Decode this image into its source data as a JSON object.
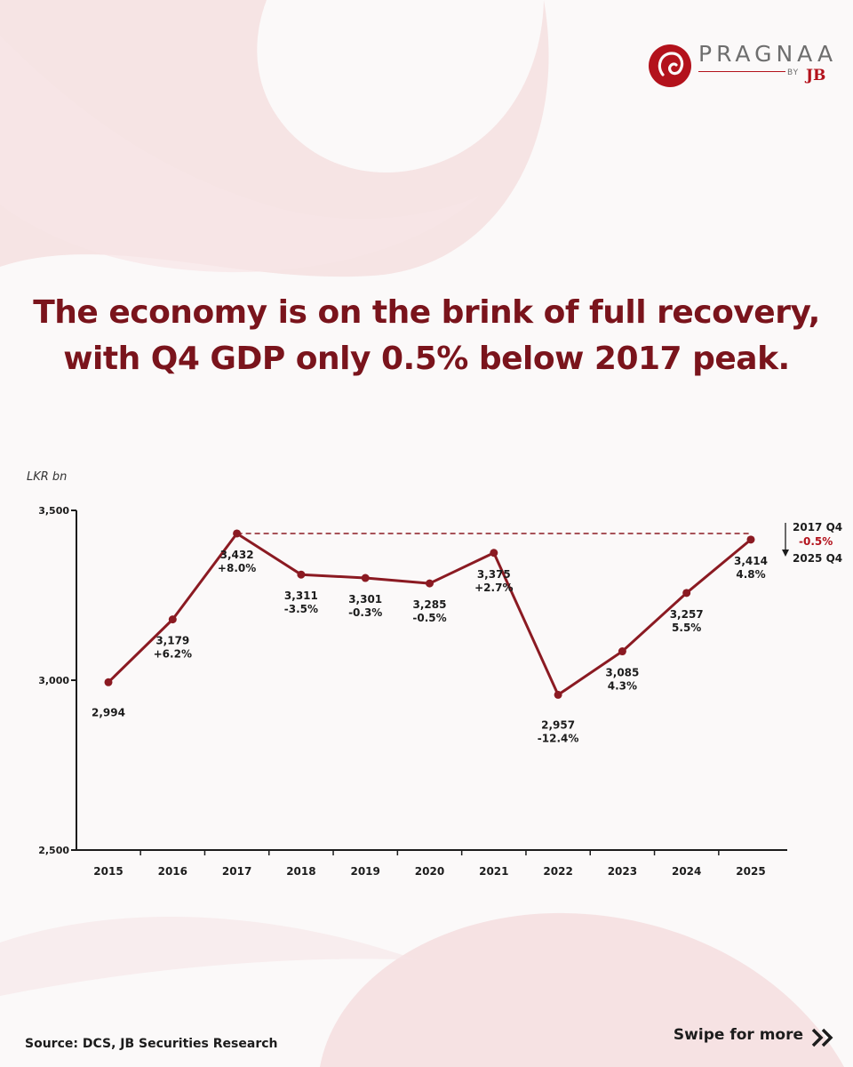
{
  "brand": {
    "name": "PRAGNAA",
    "by": "BY",
    "jb": "JB"
  },
  "headline": {
    "line1": "The economy is on the brink of full recovery,",
    "line2": "with Q4 GDP only 0.5% below 2017 peak."
  },
  "chart_data": {
    "type": "line",
    "title": "The economy is on the brink of full recovery, with Q4 GDP only 0.5% below 2017 peak.",
    "ylabel": "LKR bn",
    "xlabel": "",
    "ylim": [
      2500,
      3500
    ],
    "yticks": [
      {
        "value": 2500,
        "label": "2,500"
      },
      {
        "value": 3000,
        "label": "3,000"
      },
      {
        "value": 3500,
        "label": "3,500"
      }
    ],
    "grid": false,
    "legend": "none",
    "color": "#8b1a22",
    "x": [
      "2015",
      "2016",
      "2017",
      "2018",
      "2019",
      "2020",
      "2021",
      "2022",
      "2023",
      "2024",
      "2025"
    ],
    "values": [
      2994,
      3179,
      3432,
      3311,
      3301,
      3285,
      3375,
      2957,
      3085,
      3257,
      3414
    ],
    "value_labels": [
      "2,994",
      "3,179",
      "3,432",
      "3,311",
      "3,301",
      "3,285",
      "3,375",
      "2,957",
      "3,085",
      "3,257",
      "3,414"
    ],
    "growth_labels": [
      "",
      "+6.2%",
      "+8.0%",
      "-3.5%",
      "-0.3%",
      "-0.5%",
      "+2.7%",
      "-12.4%",
      "4.3%",
      "5.5%",
      "4.8%"
    ],
    "peak_reference": {
      "value": 3432,
      "from": "2017",
      "to": "2025",
      "style": "dashed"
    },
    "annotation": {
      "top": "2017 Q4",
      "change": "-0.5%",
      "bottom": "2025 Q4"
    }
  },
  "footer": {
    "source": "Source: DCS, JB Securities Research",
    "swipe": "Swipe for more"
  },
  "colors": {
    "accent": "#7a141c",
    "brand_red": "#b3121c",
    "text": "#1c1c1c"
  }
}
